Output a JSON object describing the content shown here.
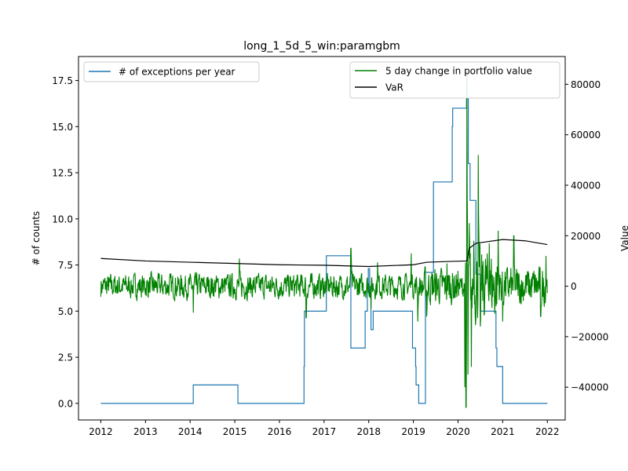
{
  "chart_data": {
    "type": "line",
    "title": "long_1_5d_5_win:paramgbm",
    "xlabel": "",
    "ylabel_left": "# of counts",
    "ylabel_right": "Value",
    "x_ticks": [
      "2012",
      "2013",
      "2014",
      "2015",
      "2016",
      "2017",
      "2018",
      "2019",
      "2020",
      "2021",
      "2022"
    ],
    "y_left_ticks": [
      "0.0",
      "2.5",
      "5.0",
      "7.5",
      "10.0",
      "12.5",
      "15.0",
      "17.5"
    ],
    "y_right_ticks": [
      "−40000",
      "−20000",
      "0",
      "20000",
      "40000",
      "60000",
      "80000"
    ],
    "xlim": [
      2011.5,
      2022.4
    ],
    "ylim_left": [
      -0.9,
      18.8
    ],
    "ylim_right": [
      -53000,
      91000
    ],
    "legend_left": {
      "placement": "top-left",
      "entries": [
        "# of exceptions per year"
      ]
    },
    "legend_right": {
      "placement": "top-right",
      "entries": [
        "5 day change in portfolio value",
        "VaR"
      ]
    },
    "series": [
      {
        "name": "# of exceptions per year",
        "axis": "left",
        "color": "#1f77b4",
        "step": true,
        "points": [
          [
            2012.0,
            0
          ],
          [
            2014.07,
            0
          ],
          [
            2014.07,
            1
          ],
          [
            2015.07,
            1
          ],
          [
            2015.07,
            0
          ],
          [
            2016.55,
            0
          ],
          [
            2016.55,
            2
          ],
          [
            2016.56,
            2
          ],
          [
            2016.56,
            5
          ],
          [
            2017.05,
            5
          ],
          [
            2017.05,
            8
          ],
          [
            2017.6,
            8
          ],
          [
            2017.6,
            3
          ],
          [
            2017.92,
            3
          ],
          [
            2017.92,
            5
          ],
          [
            2017.97,
            5
          ],
          [
            2017.97,
            6
          ],
          [
            2017.99,
            6
          ],
          [
            2017.99,
            7.3
          ],
          [
            2018.02,
            7.3
          ],
          [
            2018.02,
            6
          ],
          [
            2018.05,
            6
          ],
          [
            2018.05,
            4
          ],
          [
            2018.1,
            4
          ],
          [
            2018.1,
            5
          ],
          [
            2018.98,
            5
          ],
          [
            2018.98,
            3
          ],
          [
            2019.05,
            3
          ],
          [
            2019.05,
            2
          ],
          [
            2019.06,
            2
          ],
          [
            2019.06,
            1
          ],
          [
            2019.12,
            1
          ],
          [
            2019.12,
            0
          ],
          [
            2019.27,
            0
          ],
          [
            2019.27,
            7.1
          ],
          [
            2019.45,
            7.1
          ],
          [
            2019.45,
            12
          ],
          [
            2019.87,
            12
          ],
          [
            2019.87,
            15
          ],
          [
            2019.88,
            15
          ],
          [
            2019.88,
            16
          ],
          [
            2020.19,
            16
          ],
          [
            2020.19,
            16.5
          ],
          [
            2020.23,
            16.5
          ],
          [
            2020.23,
            13
          ],
          [
            2020.27,
            13
          ],
          [
            2020.27,
            11
          ],
          [
            2020.4,
            11
          ],
          [
            2020.4,
            7
          ],
          [
            2020.5,
            7
          ],
          [
            2020.5,
            5
          ],
          [
            2020.85,
            5
          ],
          [
            2020.85,
            3
          ],
          [
            2020.87,
            3
          ],
          [
            2020.87,
            2
          ],
          [
            2021.0,
            2
          ],
          [
            2021.0,
            0
          ],
          [
            2022.0,
            0
          ]
        ]
      },
      {
        "name": "5 day change in portfolio value",
        "axis": "right",
        "color": "#008000",
        "generator": {
          "x_start": 2012.0,
          "x_end": 2022.0,
          "points": 1300,
          "seed": 7,
          "base_amplitude": 4200,
          "spikes": [
            [
              2014.07,
              -10500
            ],
            [
              2015.1,
              11000
            ],
            [
              2016.6,
              -12500
            ],
            [
              2017.6,
              15000
            ],
            [
              2018.05,
              -9000
            ],
            [
              2018.2,
              9500
            ],
            [
              2018.95,
              13000
            ],
            [
              2019.1,
              -14000
            ],
            [
              2019.3,
              -12000
            ],
            [
              2019.75,
              9000
            ],
            [
              2020.15,
              -40000
            ],
            [
              2020.18,
              -48000
            ],
            [
              2020.2,
              85000
            ],
            [
              2020.22,
              -35000
            ],
            [
              2020.25,
              25000
            ],
            [
              2020.3,
              -32000
            ],
            [
              2020.35,
              18000
            ],
            [
              2020.45,
              52000
            ],
            [
              2020.5,
              -16000
            ],
            [
              2020.7,
              17000
            ],
            [
              2020.9,
              22000
            ],
            [
              2021.0,
              -14000
            ],
            [
              2021.25,
              20000
            ],
            [
              2021.85,
              -12000
            ],
            [
              2021.97,
              12000
            ]
          ],
          "high_vol_periods": [
            [
              2019.2,
              2020.0,
              1.5
            ],
            [
              2020.15,
              2020.9,
              3.0
            ],
            [
              2020.9,
              2022.0,
              1.6
            ]
          ]
        }
      },
      {
        "name": "VaR",
        "axis": "right",
        "color": "#000000",
        "points": [
          [
            2012.0,
            11000
          ],
          [
            2013.0,
            10000
          ],
          [
            2014.0,
            9500
          ],
          [
            2015.0,
            9000
          ],
          [
            2016.0,
            8500
          ],
          [
            2017.0,
            8300
          ],
          [
            2018.0,
            7800
          ],
          [
            2019.0,
            8500
          ],
          [
            2019.3,
            9500
          ],
          [
            2019.8,
            9800
          ],
          [
            2020.2,
            10000
          ],
          [
            2020.25,
            15000
          ],
          [
            2020.4,
            17000
          ],
          [
            2020.6,
            17500
          ],
          [
            2021.0,
            18500
          ],
          [
            2021.5,
            18000
          ],
          [
            2022.0,
            16500
          ]
        ]
      }
    ]
  }
}
